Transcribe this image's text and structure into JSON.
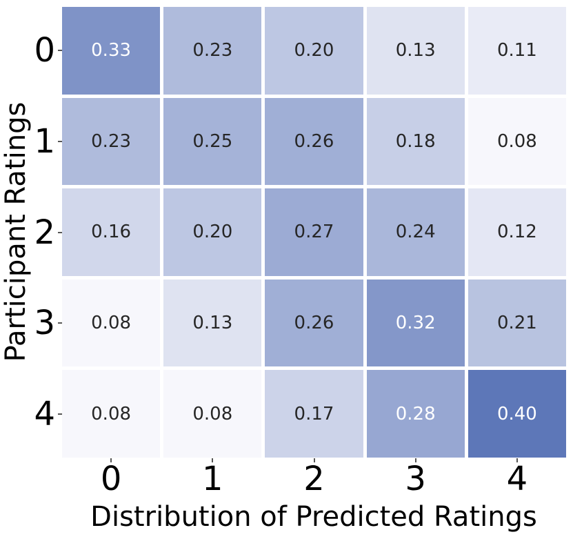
{
  "chart_data": {
    "type": "heatmap",
    "xlabel": "Distribution of Predicted Ratings",
    "ylabel": "Participant Ratings",
    "x_tick_labels": [
      "0",
      "1",
      "2",
      "3",
      "4"
    ],
    "y_tick_labels": [
      "0",
      "1",
      "2",
      "3",
      "4"
    ],
    "values": [
      [
        0.33,
        0.23,
        0.2,
        0.13,
        0.11
      ],
      [
        0.23,
        0.25,
        0.26,
        0.18,
        0.08
      ],
      [
        0.16,
        0.2,
        0.27,
        0.24,
        0.12
      ],
      [
        0.08,
        0.13,
        0.26,
        0.32,
        0.21
      ],
      [
        0.08,
        0.08,
        0.17,
        0.28,
        0.4
      ]
    ],
    "decimals": 2,
    "vmin": 0.08,
    "vmax": 0.4,
    "colormap": {
      "low": "#f7f7fc",
      "high": "#5d77b8"
    },
    "annotation_colors": {
      "dark": "#262626",
      "light": "#ffffff"
    },
    "grid_line_color": "#ffffff",
    "tick_color": "#555555",
    "legend": "none",
    "grid": "off"
  }
}
